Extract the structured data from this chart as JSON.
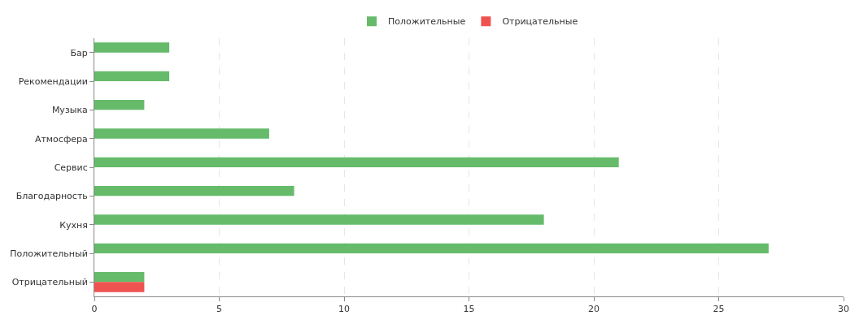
{
  "chart_data": {
    "type": "bar",
    "orientation": "horizontal",
    "categories": [
      "Бар",
      "Рекомендации",
      "Музыка",
      "Атмосфера",
      "Сервис",
      "Благодарность",
      "Кухня",
      "Положительный",
      "Отрицательный"
    ],
    "series": [
      {
        "name": "Положительные",
        "color": "#66bb6a",
        "values": [
          3,
          3,
          2,
          7,
          21,
          8,
          18,
          27,
          2
        ]
      },
      {
        "name": "Отрицательные",
        "color": "#ef5350",
        "values": [
          null,
          null,
          null,
          null,
          null,
          null,
          null,
          null,
          2
        ]
      }
    ],
    "xlim": [
      0,
      30
    ],
    "xticks": [
      0,
      5,
      10,
      15,
      20,
      25,
      30
    ],
    "grid": "x",
    "legend": "top"
  }
}
